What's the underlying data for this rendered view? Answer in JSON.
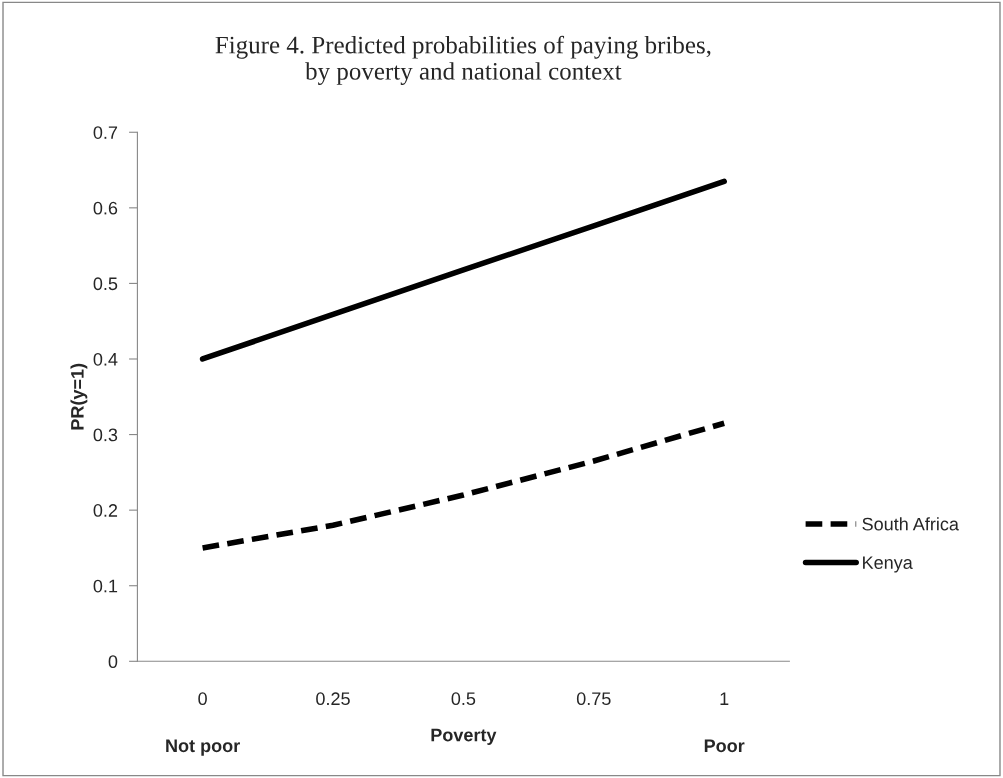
{
  "chart_data": {
    "type": "line",
    "title": "Figure 4. Predicted probabilities of paying bribes,\nby poverty and national context",
    "xlabel": "Poverty",
    "ylabel": "PR(y=1)",
    "categories": [
      "0",
      "0.25",
      "0.5",
      "0.75",
      "1"
    ],
    "series": [
      {
        "name": "South Africa",
        "color": "#000000",
        "line_style": "dashed",
        "values": [
          0.15,
          0.18,
          0.22,
          0.265,
          0.315
        ]
      },
      {
        "name": "Kenya",
        "color": "#000000",
        "line_style": "solid",
        "values": [
          0.4,
          0.459,
          0.518,
          0.576,
          0.635
        ]
      }
    ],
    "annotations": [
      "Not poor",
      "Poor"
    ],
    "ylim": [
      0,
      0.7
    ],
    "yticks": [
      0,
      0.1,
      0.2,
      0.3,
      0.4,
      0.5,
      0.6,
      0.7
    ],
    "grid": false,
    "legend": "right",
    "marker": "none"
  }
}
